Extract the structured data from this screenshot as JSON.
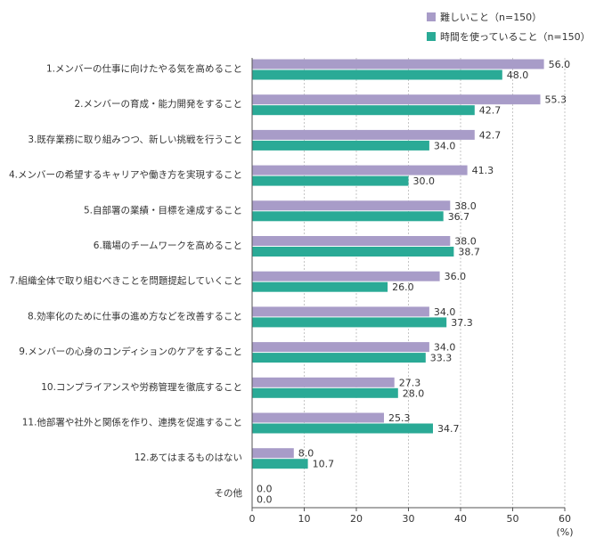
{
  "chart_data": {
    "type": "bar",
    "orientation": "horizontal",
    "categories": [
      "1.メンバーの仕事に向けたやる気を高めること",
      "2.メンバーの育成・能力開発をすること",
      "3.既存業務に取り組みつつ、新しい挑戦を行うこと",
      "4.メンバーの希望するキャリアや働き方を実現すること",
      "5.自部署の業績・目標を達成すること",
      "6.職場のチームワークを高めること",
      "7.組織全体で取り組むべきことを問題提起していくこと",
      "8.効率化のために仕事の進め方などを改善すること",
      "9.メンバーの心身のコンディションのケアをすること",
      "10.コンプライアンスや労務管理を徹底すること",
      "11.他部署や社外と関係を作り、連携を促進すること",
      "12.あてはまるものはない",
      "その他"
    ],
    "series": [
      {
        "name": "難しいこと（n=150）",
        "color": "#a89cc8",
        "values": [
          56.0,
          55.3,
          42.7,
          41.3,
          38.0,
          38.0,
          36.0,
          34.0,
          34.0,
          27.3,
          25.3,
          8.0,
          0.0
        ],
        "labels": [
          "56.0",
          "55.3",
          "42.7",
          "41.3",
          "38.0",
          "38.0",
          "36.0",
          "34.0",
          "34.0",
          "27.3",
          "25.3",
          "8.0",
          "0.0"
        ]
      },
      {
        "name": "時間を使っていること（n=150）",
        "color": "#2aaa96",
        "values": [
          48.0,
          42.7,
          34.0,
          30.0,
          36.7,
          38.7,
          26.0,
          37.3,
          33.3,
          28.0,
          34.7,
          10.7,
          0.0
        ],
        "labels": [
          "48.0",
          "42.7",
          "34.0",
          "30.0",
          "36.7",
          "38.7",
          "26.0",
          "37.3",
          "33.3",
          "28.0",
          "34.7",
          "10.7",
          "0.0"
        ]
      }
    ],
    "xlim": [
      0,
      60
    ],
    "xticks": [
      "0",
      "10",
      "20",
      "30",
      "40",
      "50",
      "60"
    ],
    "xlabel": "(%)",
    "grid": "vertical-dotted",
    "legend_position": "top-right"
  }
}
